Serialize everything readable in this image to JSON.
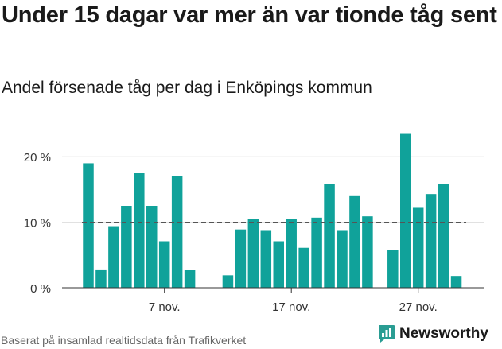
{
  "title": "Under 15 dagar var mer än var tionde tåg sent",
  "subtitle": "Andel försenade tåg per dag i Enköpings kommun",
  "source": "Baserat på insamlad realtidsdata från Trafikverket",
  "brand": {
    "name": "Newsworthy",
    "color": "#2a9d93"
  },
  "chart_data": {
    "type": "bar",
    "title": "Under 15 dagar var mer än var tionde tåg sent",
    "subtitle": "Andel försenade tåg per dag i Enköpings kommun",
    "bar_color": "#10a29a",
    "x": [
      1,
      2,
      3,
      4,
      5,
      6,
      7,
      8,
      9,
      10,
      11,
      12,
      13,
      14,
      15,
      16,
      17,
      18,
      19,
      20,
      21,
      22,
      23,
      24,
      25,
      26,
      27,
      28,
      29,
      30,
      31
    ],
    "values": [
      19,
      2.8,
      9.4,
      12.5,
      17.5,
      12.5,
      7.1,
      17,
      2.7,
      null,
      null,
      1.9,
      8.9,
      10.5,
      8.8,
      7.1,
      10.5,
      6.1,
      10.7,
      15.8,
      8.8,
      14.1,
      10.9,
      null,
      5.8,
      23.6,
      12.2,
      14.3,
      15.8,
      1.8,
      null
    ],
    "x_ticks": [
      {
        "value": 7,
        "label": "7 nov."
      },
      {
        "value": 17,
        "label": "17 nov."
      },
      {
        "value": 27,
        "label": "27 nov."
      }
    ],
    "y_ticks": [
      {
        "value": 0,
        "label": "0 %"
      },
      {
        "value": 10,
        "label": "10 %"
      },
      {
        "value": 20,
        "label": "20 %"
      }
    ],
    "ylim": [
      0,
      25
    ],
    "reference_line": {
      "value": 10,
      "style": "dashed"
    },
    "grid": true,
    "xlabel": "",
    "ylabel": ""
  }
}
